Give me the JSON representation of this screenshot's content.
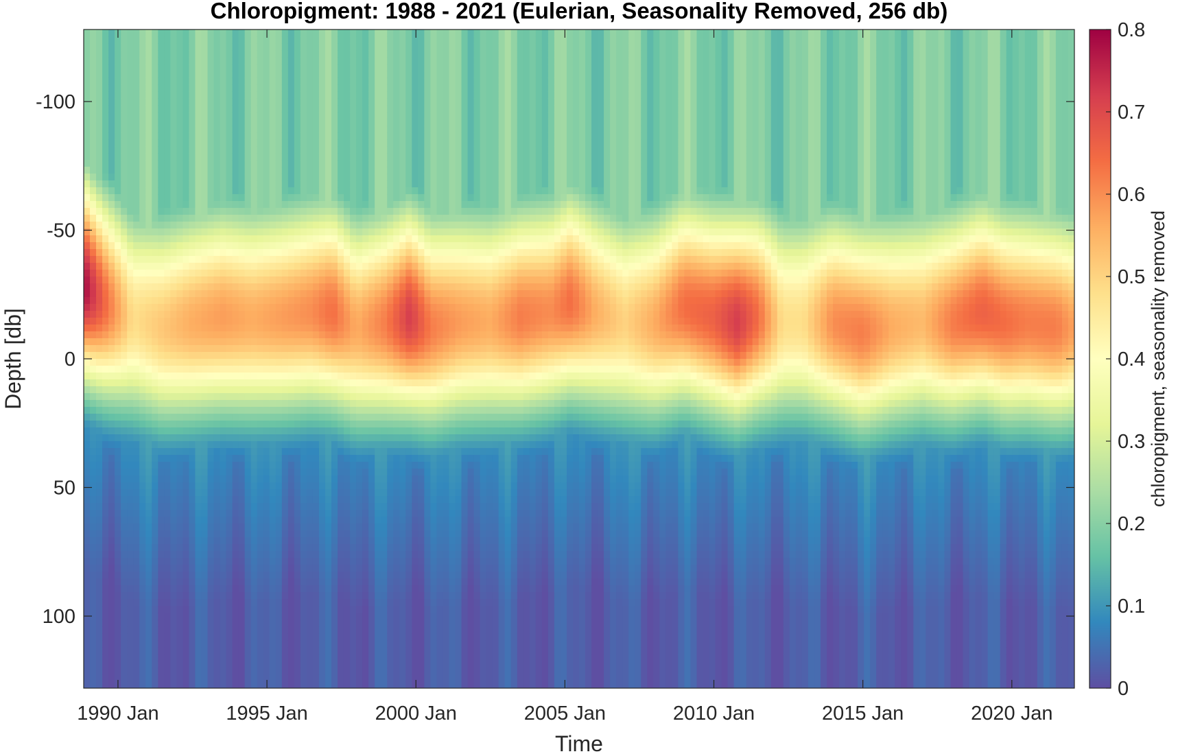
{
  "chart_data": {
    "type": "heatmap",
    "title": "Chloropigment: 1988 - 2021 (Eulerian, Seasonality Removed, 256 db)",
    "xlabel": "Time",
    "ylabel": "Depth [db]",
    "xlim": [
      "1988-11",
      "2022-02"
    ],
    "ylim": [
      -128,
      128
    ],
    "y_reversed": true,
    "x_ticks": [
      {
        "label": "1990 Jan",
        "value": 1990.0
      },
      {
        "label": "1995 Jan",
        "value": 1995.0
      },
      {
        "label": "2000 Jan",
        "value": 2000.0
      },
      {
        "label": "2005 Jan",
        "value": 2005.0
      },
      {
        "label": "2010 Jan",
        "value": 2010.0
      },
      {
        "label": "2015 Jan",
        "value": 2015.0
      },
      {
        "label": "2020 Jan",
        "value": 2020.0
      }
    ],
    "y_ticks": [
      {
        "label": "-100",
        "value": -100
      },
      {
        "label": "-50",
        "value": -50
      },
      {
        "label": "0",
        "value": 0
      },
      {
        "label": "50",
        "value": 50
      },
      {
        "label": "100",
        "value": 100
      }
    ],
    "colorbar": {
      "label": "chloropigment, seasonality removed",
      "range": [
        0,
        0.8
      ],
      "ticks": [
        "0",
        "0.1",
        "0.2",
        "0.3",
        "0.4",
        "0.5",
        "0.6",
        "0.7",
        "0.8"
      ],
      "colormap": [
        "#5e4fa2",
        "#3288bd",
        "#66c2a5",
        "#abdda4",
        "#e6f598",
        "#ffffbf",
        "#fee08b",
        "#fdae61",
        "#f46d43",
        "#d53e4f",
        "#9e0142"
      ]
    },
    "chlorophyll_max": {
      "description_values": "depth of peak and peak magnitude through time",
      "years": [
        1988.9,
        1989.5,
        1990.5,
        1991.5,
        1992.5,
        1993.5,
        1994.5,
        1995.5,
        1996.5,
        1997.2,
        1998.0,
        1999.0,
        1999.8,
        2000.5,
        2001.5,
        2002.5,
        2003.5,
        2004.5,
        2005.2,
        2006.0,
        2007.0,
        2008.0,
        2009.0,
        2010.0,
        2010.8,
        2011.5,
        2012.3,
        2013.0,
        2014.0,
        2015.0,
        2016.0,
        2017.0,
        2018.0,
        2019.0,
        2019.8,
        2020.5,
        2021.5,
        2022.0
      ],
      "peak_depth_db": [
        -28,
        -22,
        -15,
        -12,
        -14,
        -16,
        -15,
        -16,
        -18,
        -18,
        -12,
        -14,
        -16,
        -12,
        -14,
        -14,
        -16,
        -18,
        -22,
        -18,
        -14,
        -14,
        -20,
        -16,
        -14,
        -16,
        -14,
        -14,
        -14,
        -10,
        -12,
        -14,
        -14,
        -18,
        -14,
        -14,
        -12,
        -12
      ],
      "peak_value": [
        0.78,
        0.66,
        0.48,
        0.52,
        0.56,
        0.58,
        0.56,
        0.58,
        0.6,
        0.64,
        0.56,
        0.62,
        0.72,
        0.62,
        0.58,
        0.56,
        0.62,
        0.6,
        0.64,
        0.56,
        0.5,
        0.56,
        0.64,
        0.66,
        0.72,
        0.64,
        0.48,
        0.48,
        0.6,
        0.62,
        0.56,
        0.54,
        0.62,
        0.66,
        0.64,
        0.62,
        0.62,
        0.58
      ]
    }
  }
}
